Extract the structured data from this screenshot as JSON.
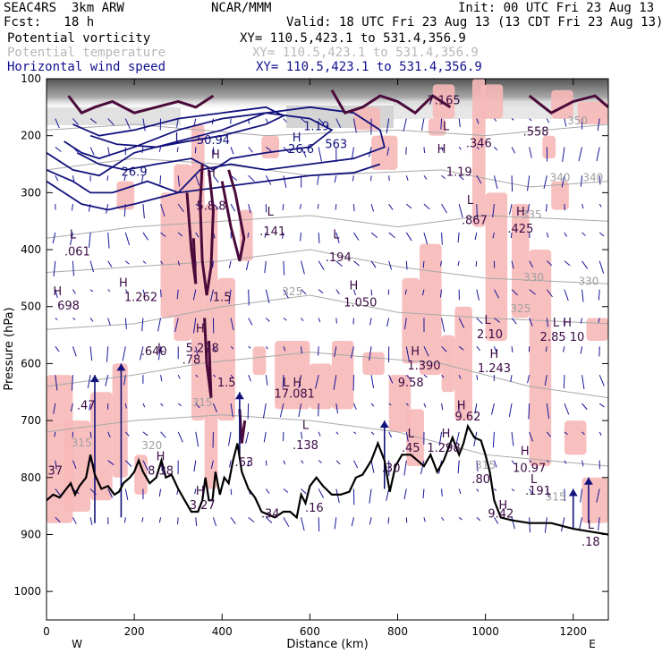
{
  "header": {
    "line1_left": "SEAC4RS  3km ARW",
    "line1_mid": "NCAR/MMM",
    "line1_right": "Init: 00 UTC Fri 23 Aug 13",
    "line2_left": "Fcst:   18 h",
    "line2_right": "Valid: 18 UTC Fri 23 Aug 13 (13 CDT Fri 23 Aug 13)"
  },
  "legend": [
    {
      "label": "Potential vorticity",
      "xy": "XY= 110.5,423.1 to 531.4,356.9",
      "color": "#000000"
    },
    {
      "label": "Potential temperature",
      "xy": "XY= 110.5,423.1 to 531.4,356.9",
      "color": "#b8b8b8"
    },
    {
      "label": "Horizontal wind speed",
      "xy": "XY= 110.5,423.1 to 531.4,356.9",
      "color": "#101090"
    }
  ],
  "chart_data": {
    "type": "cross-section",
    "xlabel": "Distance (km)",
    "ylabel": "Pressure (hPa)",
    "xlim": [
      0,
      1280
    ],
    "ylim": [
      1050,
      100
    ],
    "x_ticks": [
      0,
      200,
      400,
      600,
      800,
      1000,
      1200
    ],
    "y_ticks": [
      100,
      200,
      300,
      400,
      500,
      600,
      700,
      800,
      900,
      1000
    ],
    "x_end_labels": {
      "left": "W",
      "right": "E"
    },
    "theta_labels": [
      {
        "x": 1170,
        "p": 280,
        "text": "340"
      },
      {
        "x": 1245,
        "p": 280,
        "text": "340"
      },
      {
        "x": 1105,
        "p": 345,
        "text": "335"
      },
      {
        "x": 1110,
        "p": 455,
        "text": "330"
      },
      {
        "x": 1235,
        "p": 462,
        "text": "330"
      },
      {
        "x": 560,
        "p": 480,
        "text": "325"
      },
      {
        "x": 1080,
        "p": 510,
        "text": "325"
      },
      {
        "x": 355,
        "p": 675,
        "text": "315"
      },
      {
        "x": 80,
        "p": 745,
        "text": "315"
      },
      {
        "x": 240,
        "p": 750,
        "text": "320"
      },
      {
        "x": 1000,
        "p": 785,
        "text": "315"
      },
      {
        "x": 1160,
        "p": 840,
        "text": "315"
      },
      {
        "x": 1210,
        "p": 180,
        "text": "350"
      }
    ],
    "pv_labels": [
      {
        "x": 60,
        "p": 380,
        "text": "L"
      },
      {
        "x": 70,
        "p": 410,
        "text": ".061"
      },
      {
        "x": 25,
        "p": 480,
        "text": "H"
      },
      {
        "x": 50,
        "p": 505,
        "text": "698"
      },
      {
        "x": 175,
        "p": 465,
        "text": "H"
      },
      {
        "x": 215,
        "p": 490,
        "text": "1.262"
      },
      {
        "x": 385,
        "p": 240,
        "text": "H"
      },
      {
        "x": 375,
        "p": 330,
        "text": "5.8.8"
      },
      {
        "x": 375,
        "p": 270,
        "text": "H"
      },
      {
        "x": 400,
        "p": 490,
        "text": "1.5"
      },
      {
        "x": 350,
        "p": 545,
        "text": "H"
      },
      {
        "x": 355,
        "p": 580,
        "text": "5.228"
      },
      {
        "x": 330,
        "p": 600,
        "text": ".78"
      },
      {
        "x": 260,
        "p": 580,
        "text": "L"
      },
      {
        "x": 245,
        "p": 585,
        "text": ".640"
      },
      {
        "x": 410,
        "p": 640,
        "text": "1.5"
      },
      {
        "x": 510,
        "p": 340,
        "text": "L"
      },
      {
        "x": 515,
        "p": 375,
        "text": ".141"
      },
      {
        "x": 660,
        "p": 380,
        "text": "L"
      },
      {
        "x": 665,
        "p": 420,
        "text": ".194"
      },
      {
        "x": 700,
        "p": 470,
        "text": "H"
      },
      {
        "x": 715,
        "p": 500,
        "text": "1.050"
      },
      {
        "x": 560,
        "p": 640,
        "text": "L H"
      },
      {
        "x": 565,
        "p": 660,
        "text": "17.081"
      },
      {
        "x": 590,
        "p": 715,
        "text": "L"
      },
      {
        "x": 590,
        "p": 750,
        "text": ".138"
      },
      {
        "x": 90,
        "p": 680,
        "text": ".47"
      },
      {
        "x": 260,
        "p": 770,
        "text": "H"
      },
      {
        "x": 260,
        "p": 795,
        "text": "8.38"
      },
      {
        "x": 20,
        "p": 795,
        "text": "37"
      },
      {
        "x": 350,
        "p": 830,
        "text": "H"
      },
      {
        "x": 355,
        "p": 855,
        "text": "3.27"
      },
      {
        "x": 450,
        "p": 780,
        "text": ".63"
      },
      {
        "x": 510,
        "p": 870,
        "text": ".34"
      },
      {
        "x": 610,
        "p": 860,
        "text": ".16"
      },
      {
        "x": 785,
        "p": 790,
        "text": ".30"
      },
      {
        "x": 900,
        "p": 230,
        "text": "H"
      },
      {
        "x": 940,
        "p": 270,
        "text": "1.19"
      },
      {
        "x": 910,
        "p": 190,
        "text": "L"
      },
      {
        "x": 985,
        "p": 220,
        "text": ".346"
      },
      {
        "x": 905,
        "p": 145,
        "text": "7.165"
      },
      {
        "x": 1115,
        "p": 200,
        "text": ".558"
      },
      {
        "x": 965,
        "p": 320,
        "text": "L"
      },
      {
        "x": 975,
        "p": 355,
        "text": ".867"
      },
      {
        "x": 1080,
        "p": 340,
        "text": "H"
      },
      {
        "x": 1080,
        "p": 370,
        "text": ".425"
      },
      {
        "x": 1005,
        "p": 530,
        "text": "L"
      },
      {
        "x": 1010,
        "p": 555,
        "text": "2.10"
      },
      {
        "x": 1175,
        "p": 535,
        "text": "L H"
      },
      {
        "x": 1175,
        "p": 560,
        "text": "2.85 10"
      },
      {
        "x": 1020,
        "p": 590,
        "text": "H"
      },
      {
        "x": 1020,
        "p": 615,
        "text": "1.243"
      },
      {
        "x": 840,
        "p": 585,
        "text": "H"
      },
      {
        "x": 860,
        "p": 610,
        "text": "1.390"
      },
      {
        "x": 830,
        "p": 640,
        "text": "9.58"
      },
      {
        "x": 945,
        "p": 680,
        "text": "H"
      },
      {
        "x": 960,
        "p": 700,
        "text": "9.62"
      },
      {
        "x": 910,
        "p": 730,
        "text": "H"
      },
      {
        "x": 905,
        "p": 755,
        "text": "1.298"
      },
      {
        "x": 830,
        "p": 730,
        "text": "L"
      },
      {
        "x": 830,
        "p": 755,
        "text": ".45"
      },
      {
        "x": 1090,
        "p": 760,
        "text": "H"
      },
      {
        "x": 1100,
        "p": 790,
        "text": "10.97"
      },
      {
        "x": 1110,
        "p": 810,
        "text": "L"
      },
      {
        "x": 1120,
        "p": 830,
        "text": ".191"
      },
      {
        "x": 1040,
        "p": 855,
        "text": "H"
      },
      {
        "x": 1035,
        "p": 870,
        "text": "9.42"
      },
      {
        "x": 990,
        "p": 810,
        "text": ".80"
      },
      {
        "x": 1240,
        "p": 890,
        "text": "L"
      },
      {
        "x": 1240,
        "p": 920,
        "text": ".18"
      }
    ],
    "wind_labels": [
      {
        "x": 615,
        "p": 190,
        "text": "1.19"
      },
      {
        "x": 380,
        "p": 215,
        "text": "50.94"
      },
      {
        "x": 570,
        "p": 210,
        "text": "H"
      },
      {
        "x": 580,
        "p": 230,
        "text": "26.6"
      },
      {
        "x": 200,
        "p": 270,
        "text": "26.9"
      },
      {
        "x": 660,
        "p": 222,
        "text": "563"
      },
      {
        "x": 300,
        "p": 210,
        "text": "L"
      }
    ],
    "ground_profile": [
      [
        0,
        840
      ],
      [
        15,
        830
      ],
      [
        30,
        835
      ],
      [
        45,
        820
      ],
      [
        55,
        810
      ],
      [
        65,
        830
      ],
      [
        75,
        815
      ],
      [
        90,
        800
      ],
      [
        100,
        760
      ],
      [
        110,
        795
      ],
      [
        125,
        820
      ],
      [
        140,
        815
      ],
      [
        155,
        830
      ],
      [
        165,
        825
      ],
      [
        175,
        810
      ],
      [
        190,
        800
      ],
      [
        200,
        790
      ],
      [
        210,
        770
      ],
      [
        220,
        790
      ],
      [
        235,
        810
      ],
      [
        250,
        800
      ],
      [
        262,
        770
      ],
      [
        272,
        800
      ],
      [
        285,
        795
      ],
      [
        300,
        820
      ],
      [
        315,
        840
      ],
      [
        330,
        860
      ],
      [
        345,
        860
      ],
      [
        355,
        840
      ],
      [
        362,
        800
      ],
      [
        370,
        840
      ],
      [
        378,
        840
      ],
      [
        385,
        790
      ],
      [
        395,
        830
      ],
      [
        405,
        800
      ],
      [
        415,
        810
      ],
      [
        425,
        770
      ],
      [
        435,
        740
      ],
      [
        445,
        790
      ],
      [
        460,
        820
      ],
      [
        475,
        835
      ],
      [
        490,
        860
      ],
      [
        505,
        865
      ],
      [
        520,
        870
      ],
      [
        540,
        860
      ],
      [
        555,
        860
      ],
      [
        570,
        870
      ],
      [
        580,
        830
      ],
      [
        590,
        845
      ],
      [
        600,
        815
      ],
      [
        615,
        800
      ],
      [
        630,
        815
      ],
      [
        650,
        830
      ],
      [
        670,
        830
      ],
      [
        690,
        825
      ],
      [
        705,
        800
      ],
      [
        720,
        795
      ],
      [
        740,
        770
      ],
      [
        755,
        740
      ],
      [
        770,
        770
      ],
      [
        782,
        825
      ],
      [
        795,
        780
      ],
      [
        810,
        760
      ],
      [
        830,
        760
      ],
      [
        845,
        770
      ],
      [
        860,
        780
      ],
      [
        875,
        760
      ],
      [
        890,
        790
      ],
      [
        905,
        770
      ],
      [
        915,
        750
      ],
      [
        925,
        730
      ],
      [
        940,
        760
      ],
      [
        950,
        740
      ],
      [
        960,
        710
      ],
      [
        975,
        730
      ],
      [
        990,
        735
      ],
      [
        1000,
        760
      ],
      [
        1010,
        790
      ],
      [
        1020,
        840
      ],
      [
        1035,
        870
      ],
      [
        1060,
        875
      ],
      [
        1100,
        880
      ],
      [
        1150,
        880
      ],
      [
        1200,
        890
      ],
      [
        1240,
        895
      ],
      [
        1280,
        900
      ]
    ]
  }
}
